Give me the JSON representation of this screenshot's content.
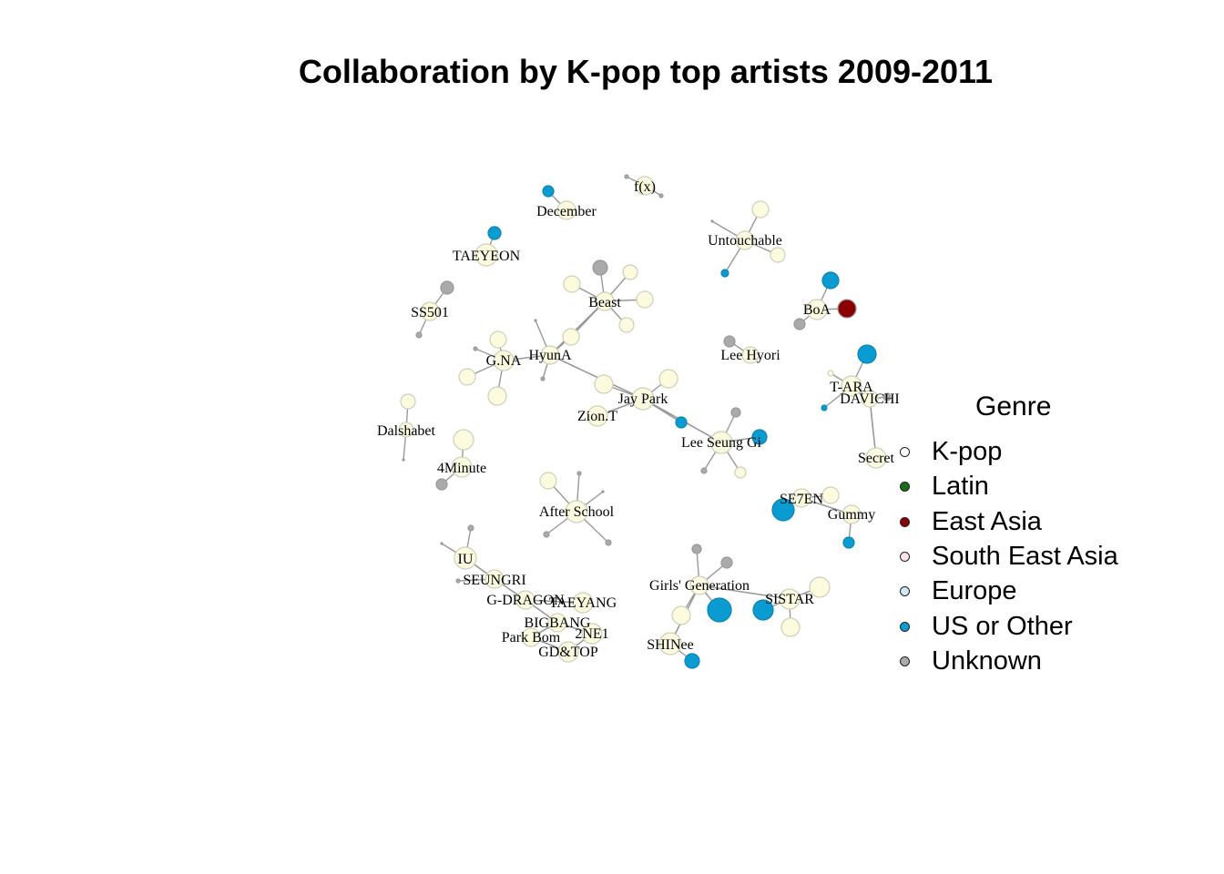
{
  "title": "Collaboration by K-pop top artists 2009-2011",
  "legend": {
    "title": "Genre",
    "items": [
      {
        "label": "K-pop",
        "color": "#ffffff"
      },
      {
        "label": "Latin",
        "color": "#1b6b1b"
      },
      {
        "label": "East Asia",
        "color": "#8b0000"
      },
      {
        "label": "South East Asia",
        "color": "#ffe4e8"
      },
      {
        "label": "Europe",
        "color": "#cfe8f7"
      },
      {
        "label": "US or Other",
        "color": "#0a9bd0"
      },
      {
        "label": "Unknown",
        "color": "#aaaaaa"
      }
    ]
  },
  "artists": [
    "f(x)",
    "December",
    "Untouchable",
    "TAEYEON",
    "Beast",
    "SS501",
    "BoA",
    "HyunA",
    "G.NA",
    "Lee Hyori",
    "T-ARA",
    "DAVICHI",
    "Jay Park",
    "Zion.T",
    "Dalshabet",
    "Lee Seung Gi",
    "4Minute",
    "Secret",
    "After School",
    "SE7EN",
    "Gummy",
    "IU",
    "SEUNGRI",
    "Girls' Generation",
    "G-DRAGON",
    "TAEYANG",
    "SISTAR",
    "BIGBANG",
    "2NE1",
    "Park Bom",
    "GD&TOP",
    "SHINee"
  ]
}
